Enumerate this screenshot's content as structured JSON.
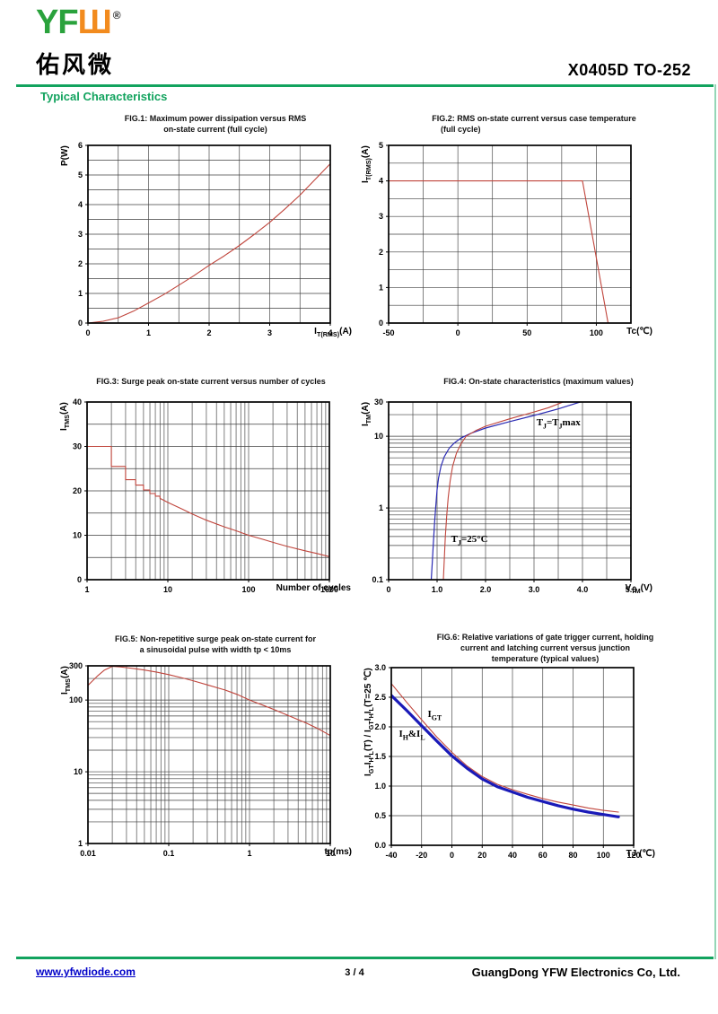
{
  "header": {
    "logo_yf": "YF",
    "logo_mark": "Ш",
    "logo_reg": "®",
    "logo_cn": "佑风微",
    "part_number": "X0405D TO-252",
    "section_title": "Typical Characteristics"
  },
  "footer": {
    "website": "www.yfwdiode.com",
    "page": "3 / 4",
    "company": "GuangDong YFW Electronics Co, Ltd."
  },
  "colors": {
    "accent_green": "#12a35e",
    "logo_green": "#2aa23c",
    "logo_orange": "#f28b1e",
    "curve_red": "#c0453c",
    "curve_blue": "#2b2bb4",
    "link_blue": "#0000c8"
  },
  "chart_data": [
    {
      "id": "fig1",
      "type": "line",
      "title_lines": [
        "FIG.1: Maximum power dissipation versus RMS",
        "on-state current (full cycle)"
      ],
      "xlabel": "I|T(RMS)|(A)",
      "ylabel": "P(W)",
      "xaxis": {
        "min": 0,
        "max": 4,
        "log": false,
        "step": 0.5
      },
      "yaxis": {
        "min": 0,
        "max": 6,
        "log": false,
        "step": 0.5
      },
      "xticks": [
        [
          0,
          "0"
        ],
        [
          1,
          "1"
        ],
        [
          2,
          "2"
        ],
        [
          3,
          "3"
        ],
        [
          4,
          "4"
        ]
      ],
      "yticks": [
        [
          0,
          "0"
        ],
        [
          1,
          "1"
        ],
        [
          2,
          "2"
        ],
        [
          3,
          "3"
        ],
        [
          4,
          "4"
        ],
        [
          5,
          "5"
        ],
        [
          6,
          "6"
        ]
      ],
      "series": [
        {
          "name": "P vs IT(RMS)",
          "color": "#c0453c",
          "width": 1.1,
          "points": [
            [
              0,
              0
            ],
            [
              0.25,
              0.06
            ],
            [
              0.5,
              0.18
            ],
            [
              0.75,
              0.4
            ],
            [
              1,
              0.68
            ],
            [
              1.25,
              0.96
            ],
            [
              1.5,
              1.28
            ],
            [
              1.75,
              1.6
            ],
            [
              2,
              1.95
            ],
            [
              2.25,
              2.27
            ],
            [
              2.5,
              2.62
            ],
            [
              2.75,
              3.0
            ],
            [
              3,
              3.4
            ],
            [
              3.25,
              3.85
            ],
            [
              3.5,
              4.32
            ],
            [
              3.75,
              4.85
            ],
            [
              4,
              5.38
            ]
          ]
        }
      ],
      "annotations": []
    },
    {
      "id": "fig2",
      "type": "line",
      "title_lines": [
        "FIG.2: RMS on-state current versus case temperature",
        "(full cycle)"
      ],
      "xlabel": "Tc(℃)",
      "ylabel": "I|T(RMS)|(A)",
      "xaxis": {
        "min": -50,
        "max": 125,
        "log": false,
        "step": 25
      },
      "yaxis": {
        "min": 0,
        "max": 5,
        "log": false,
        "step": 0.5
      },
      "xticks": [
        [
          -50,
          "-50"
        ],
        [
          0,
          "0"
        ],
        [
          50,
          "50"
        ],
        [
          100,
          "100"
        ]
      ],
      "yticks": [
        [
          0,
          "0"
        ],
        [
          1,
          "1"
        ],
        [
          2,
          "2"
        ],
        [
          3,
          "3"
        ],
        [
          4,
          "4"
        ],
        [
          5,
          "5"
        ]
      ],
      "series": [
        {
          "name": "IT(RMS) vs Tc",
          "color": "#c0453c",
          "width": 1.1,
          "points": [
            [
              -50,
              4
            ],
            [
              90,
              4
            ],
            [
              108.5,
              0
            ]
          ]
        }
      ],
      "annotations": []
    },
    {
      "id": "fig3",
      "type": "line",
      "title_lines": [
        "FIG.3: Surge peak on-state current versus number of cycles"
      ],
      "xlabel": "Number of cycles",
      "ylabel": "I|TMS|(A)",
      "xaxis": {
        "min": 1,
        "max": 1000,
        "log": true
      },
      "yaxis": {
        "min": 0,
        "max": 40,
        "log": false,
        "step": 5
      },
      "xticks": [
        [
          1,
          "1"
        ],
        [
          10,
          "10"
        ],
        [
          100,
          "100"
        ],
        [
          1000,
          "1000"
        ]
      ],
      "yticks": [
        [
          0,
          "0"
        ],
        [
          10,
          "10"
        ],
        [
          20,
          "20"
        ],
        [
          30,
          "30"
        ],
        [
          40,
          "40"
        ]
      ],
      "series": [
        {
          "name": "ITMS vs cycles",
          "color": "#c0453c",
          "width": 1.1,
          "points": [
            [
              1,
              30
            ],
            [
              2,
              30
            ],
            [
              2,
              25.5
            ],
            [
              3,
              25.5
            ],
            [
              3,
              22.5
            ],
            [
              4,
              22.5
            ],
            [
              4,
              21.3
            ],
            [
              5,
              21.3
            ],
            [
              5,
              20.2
            ],
            [
              6,
              20.2
            ],
            [
              6,
              19.4
            ],
            [
              7,
              19.4
            ],
            [
              7,
              18.8
            ],
            [
              8,
              18.8
            ],
            [
              8,
              18.3
            ],
            [
              10,
              17.4
            ],
            [
              15,
              15.9
            ],
            [
              20,
              14.8
            ],
            [
              30,
              13.4
            ],
            [
              50,
              11.9
            ],
            [
              70,
              11
            ],
            [
              100,
              10
            ],
            [
              150,
              9.1
            ],
            [
              200,
              8.4
            ],
            [
              300,
              7.5
            ],
            [
              500,
              6.5
            ],
            [
              700,
              5.9
            ],
            [
              1000,
              5.2
            ]
          ]
        }
      ],
      "annotations": []
    },
    {
      "id": "fig4",
      "type": "line",
      "title_lines": [
        "FIG.4: On-state characteristics (maximum values)"
      ],
      "xlabel": "V|TM|(V)",
      "ylabel": "I|TM|(A)",
      "xaxis": {
        "min": 0,
        "max": 5,
        "log": false,
        "step": 0.5
      },
      "yaxis": {
        "min": 0.1,
        "max": 30,
        "log": true
      },
      "xticks": [
        [
          0,
          "0"
        ],
        [
          1,
          "1.0"
        ],
        [
          2,
          "2.0"
        ],
        [
          3,
          "3.0"
        ],
        [
          4,
          "4.0"
        ],
        [
          5,
          "5.0"
        ]
      ],
      "yticks": [
        [
          0.1,
          "0.1"
        ],
        [
          1,
          "1"
        ],
        [
          10,
          "10"
        ],
        [
          30,
          "30"
        ]
      ],
      "series": [
        {
          "name": "Tj=Tjmax",
          "color": "#2b2bb4",
          "width": 1.2,
          "points": [
            [
              0.88,
              0.1
            ],
            [
              0.9,
              0.17
            ],
            [
              0.92,
              0.3
            ],
            [
              0.95,
              0.65
            ],
            [
              0.97,
              1
            ],
            [
              1.0,
              1.8
            ],
            [
              1.03,
              2.6
            ],
            [
              1.08,
              3.8
            ],
            [
              1.15,
              5.2
            ],
            [
              1.25,
              6.8
            ],
            [
              1.35,
              8
            ],
            [
              1.5,
              9.5
            ],
            [
              1.7,
              11
            ],
            [
              2.0,
              13
            ],
            [
              2.5,
              16
            ],
            [
              3.0,
              19.5
            ],
            [
              3.5,
              24
            ],
            [
              3.95,
              30
            ]
          ]
        },
        {
          "name": "Tj=25C",
          "color": "#c0453c",
          "width": 1.1,
          "points": [
            [
              1.13,
              0.1
            ],
            [
              1.15,
              0.2
            ],
            [
              1.17,
              0.4
            ],
            [
              1.2,
              0.8
            ],
            [
              1.23,
              1.4
            ],
            [
              1.27,
              2.4
            ],
            [
              1.32,
              3.8
            ],
            [
              1.4,
              5.8
            ],
            [
              1.5,
              8
            ],
            [
              1.6,
              10
            ],
            [
              1.8,
              12
            ],
            [
              2.0,
              13.8
            ],
            [
              2.5,
              17.5
            ],
            [
              3.0,
              21.8
            ],
            [
              3.3,
              25
            ],
            [
              3.6,
              30
            ]
          ]
        }
      ],
      "annotations": [
        {
          "x": 3.05,
          "y": 14.5,
          "text": "T|J|=T|J|max"
        },
        {
          "x": 1.29,
          "y": 0.35,
          "text": "T|J|=25°C"
        }
      ]
    },
    {
      "id": "fig5",
      "type": "line",
      "title_lines": [
        "FIG.5: Non-repetitive surge peak on-state current for",
        "a sinusoidal pulse with width tp < 10ms"
      ],
      "xlabel": "tp(ms)",
      "ylabel": "I|TMS|(A)",
      "xaxis": {
        "min": 0.01,
        "max": 10,
        "log": true
      },
      "yaxis": {
        "min": 1,
        "max": 300,
        "log": true
      },
      "xticks": [
        [
          0.01,
          "0.01"
        ],
        [
          0.1,
          "0.1"
        ],
        [
          1,
          "1"
        ],
        [
          10,
          "10"
        ]
      ],
      "yticks": [
        [
          1,
          "1"
        ],
        [
          10,
          "10"
        ],
        [
          100,
          "100"
        ],
        [
          300,
          "300"
        ]
      ],
      "series": [
        {
          "name": "ITMS vs tp",
          "color": "#c0453c",
          "width": 1.1,
          "points": [
            [
              0.01,
              160
            ],
            [
              0.013,
              215
            ],
            [
              0.016,
              262
            ],
            [
              0.02,
              295
            ],
            [
              0.025,
              290
            ],
            [
              0.03,
              283
            ],
            [
              0.04,
              272
            ],
            [
              0.05,
              262
            ],
            [
              0.07,
              246
            ],
            [
              0.1,
              226
            ],
            [
              0.15,
              203
            ],
            [
              0.2,
              186
            ],
            [
              0.3,
              163
            ],
            [
              0.5,
              138
            ],
            [
              0.7,
              120
            ],
            [
              1,
              100
            ],
            [
              1.5,
              84
            ],
            [
              2,
              74
            ],
            [
              3,
              61
            ],
            [
              5,
              48
            ],
            [
              7,
              40
            ],
            [
              10,
              32
            ]
          ]
        }
      ],
      "annotations": []
    },
    {
      "id": "fig6",
      "type": "line",
      "title_lines": [
        "FIG.6: Relative variations of gate trigger current, holding",
        "current and latching current versus junction",
        "temperature (typical values)"
      ],
      "xlabel": "TJ (℃)",
      "ylabel": "I|GT|I|H|I|L|(T) / I|GT|I|H|I|L|(T=25 ℃)",
      "xaxis": {
        "min": -40,
        "max": 120,
        "log": false,
        "step": 20
      },
      "yaxis": {
        "min": 0,
        "max": 3,
        "log": false,
        "step": 0.5
      },
      "xticks": [
        [
          -40,
          "-40"
        ],
        [
          -20,
          "-20"
        ],
        [
          0,
          "0"
        ],
        [
          20,
          "20"
        ],
        [
          40,
          "40"
        ],
        [
          60,
          "60"
        ],
        [
          80,
          "80"
        ],
        [
          100,
          "100"
        ],
        [
          120,
          "120"
        ]
      ],
      "yticks": [
        [
          0,
          "0.0"
        ],
        [
          0.5,
          "0.5"
        ],
        [
          1,
          "1.0"
        ],
        [
          1.5,
          "1.5"
        ],
        [
          2,
          "2.0"
        ],
        [
          2.5,
          "2.5"
        ],
        [
          3,
          "3.0"
        ]
      ],
      "series": [
        {
          "name": "IGT",
          "color": "#c0453c",
          "width": 1.1,
          "points": [
            [
              -40,
              2.73
            ],
            [
              -30,
              2.42
            ],
            [
              -20,
              2.12
            ],
            [
              -10,
              1.83
            ],
            [
              0,
              1.57
            ],
            [
              10,
              1.34
            ],
            [
              20,
              1.16
            ],
            [
              30,
              1.03
            ],
            [
              40,
              0.94
            ],
            [
              50,
              0.86
            ],
            [
              60,
              0.79
            ],
            [
              70,
              0.73
            ],
            [
              80,
              0.68
            ],
            [
              90,
              0.63
            ],
            [
              100,
              0.59
            ],
            [
              110,
              0.56
            ]
          ]
        },
        {
          "name": "IH & IL",
          "color": "#1a1ab8",
          "width": 3.2,
          "points": [
            [
              -40,
              2.53
            ],
            [
              -30,
              2.28
            ],
            [
              -20,
              2.02
            ],
            [
              -10,
              1.76
            ],
            [
              0,
              1.51
            ],
            [
              10,
              1.3
            ],
            [
              20,
              1.12
            ],
            [
              30,
              0.99
            ],
            [
              40,
              0.9
            ],
            [
              50,
              0.81
            ],
            [
              60,
              0.74
            ],
            [
              70,
              0.67
            ],
            [
              80,
              0.61
            ],
            [
              90,
              0.56
            ],
            [
              100,
              0.52
            ],
            [
              110,
              0.48
            ]
          ]
        }
      ],
      "annotations": [
        {
          "x": -16,
          "y": 2.18,
          "text": "I|GT|"
        },
        {
          "x": -35,
          "y": 1.85,
          "text": "I|H|&I|L|"
        }
      ]
    }
  ]
}
